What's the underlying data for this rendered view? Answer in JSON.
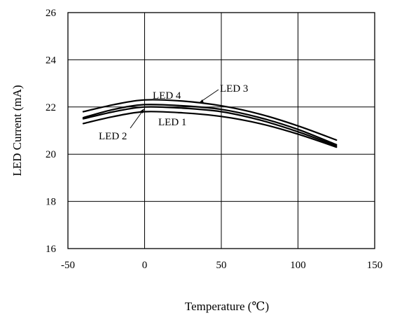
{
  "chart_data": {
    "type": "line",
    "title": "",
    "xlabel": "Temperature (℃)",
    "ylabel": "LED Current  (mA)",
    "xlim": [
      -50,
      150
    ],
    "ylim": [
      16,
      26
    ],
    "xticks": [
      -50,
      0,
      50,
      100,
      150
    ],
    "yticks": [
      16,
      18,
      20,
      22,
      24,
      26
    ],
    "grid": true,
    "series": [
      {
        "name": "LED 1",
        "x": [
          -40,
          -20,
          0,
          25,
          50,
          75,
          100,
          125
        ],
        "y": [
          21.3,
          21.6,
          21.8,
          21.75,
          21.6,
          21.3,
          20.85,
          20.3
        ]
      },
      {
        "name": "LED 2",
        "x": [
          -40,
          -20,
          0,
          25,
          50,
          75,
          100,
          125
        ],
        "y": [
          21.5,
          21.8,
          22.0,
          21.95,
          21.8,
          21.45,
          20.95,
          20.35
        ]
      },
      {
        "name": "LED 3",
        "x": [
          -40,
          -20,
          0,
          25,
          50,
          75,
          100,
          125
        ],
        "y": [
          21.8,
          22.1,
          22.3,
          22.25,
          22.05,
          21.7,
          21.2,
          20.6
        ]
      },
      {
        "name": "LED 4",
        "x": [
          -40,
          -20,
          0,
          25,
          50,
          75,
          100,
          125
        ],
        "y": [
          21.55,
          21.9,
          22.1,
          22.05,
          21.9,
          21.55,
          21.05,
          20.4
        ]
      }
    ]
  }
}
